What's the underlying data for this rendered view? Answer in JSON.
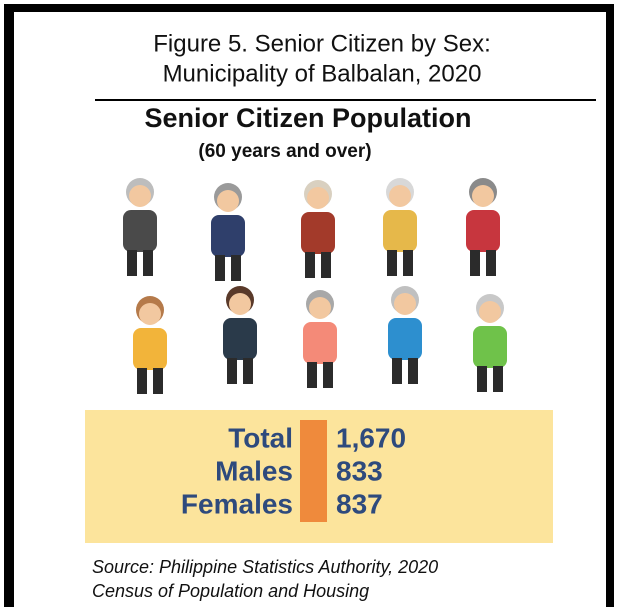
{
  "header": {
    "title_lines": [
      "Figure 5. Senior Citizen by Sex:",
      "Municipality of Balbalan, 2020"
    ]
  },
  "infographic": {
    "heading": "Senior Citizen Population",
    "subheading": "(60 years and over)",
    "stats": [
      {
        "label": "Total",
        "value": "1,670"
      },
      {
        "label": "Males",
        "value": "833"
      },
      {
        "label": "Females",
        "value": "837"
      }
    ]
  },
  "source_lines": [
    "Source: Philippine Statistics Authority, 2020",
    "Census of Population and Housing"
  ]
}
